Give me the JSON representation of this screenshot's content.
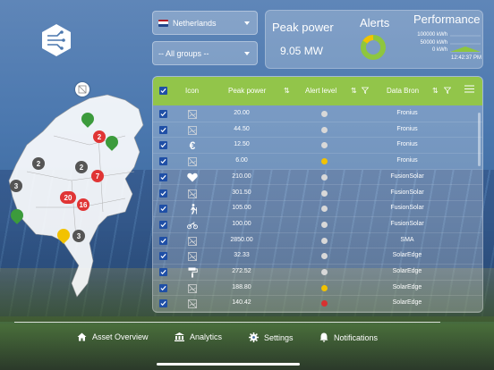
{
  "header": {
    "country_select": {
      "value": "Netherlands"
    },
    "group_select": {
      "value": "-- All groups --"
    }
  },
  "stats": {
    "peak_power_label": "Peak power",
    "peak_power_value": "9.05 MW",
    "alerts_label": "Alerts",
    "performance_label": "Performance",
    "performance_ticks": [
      "100000 kWh",
      "50000 kWh",
      "0 kWh"
    ],
    "performance_time": "12:42:37 PM"
  },
  "map": {
    "pins": [
      {
        "label": "2",
        "color": "#e03535"
      },
      {
        "label": "2",
        "color": "#555555"
      },
      {
        "label": "2",
        "color": "#555555"
      },
      {
        "label": "3",
        "color": "#555555"
      },
      {
        "label": "7",
        "color": "#e03535"
      },
      {
        "label": "20",
        "color": "#e03535"
      },
      {
        "label": "16",
        "color": "#e03535"
      },
      {
        "label": "3",
        "color": "#555555"
      }
    ]
  },
  "table": {
    "headers": {
      "icon": "Icon",
      "peak_power": "Peak power",
      "alert_level": "Alert level",
      "data_bron": "Data Bron"
    },
    "rows": [
      {
        "icon": "image-placeholder-icon",
        "power": "20.00",
        "alert": "#d8d8d8",
        "source": "Fronius"
      },
      {
        "icon": "image-placeholder-icon",
        "power": "44.50",
        "alert": "#d8d8d8",
        "source": "Fronius"
      },
      {
        "icon": "euro-icon",
        "power": "12.50",
        "alert": "#d8d8d8",
        "source": "Fronius"
      },
      {
        "icon": "image-placeholder-icon",
        "power": "6.00",
        "alert": "#f2c200",
        "source": "Fronius"
      },
      {
        "icon": "heart-icon",
        "power": "210.00",
        "alert": "#d8d8d8",
        "source": "FusionSolar"
      },
      {
        "icon": "image-placeholder-icon",
        "power": "301.50",
        "alert": "#d8d8d8",
        "source": "FusionSolar"
      },
      {
        "icon": "person-walking-icon",
        "power": "105.00",
        "alert": "#d8d8d8",
        "source": "FusionSolar"
      },
      {
        "icon": "motorcycle-icon",
        "power": "100.00",
        "alert": "#d8d8d8",
        "source": "FusionSolar"
      },
      {
        "icon": "image-placeholder-icon",
        "power": "2850.00",
        "alert": "#d8d8d8",
        "source": "SMA"
      },
      {
        "icon": "image-placeholder-icon",
        "power": "32.33",
        "alert": "#d8d8d8",
        "source": "SolarEdge"
      },
      {
        "icon": "paint-roller-icon",
        "power": "272.52",
        "alert": "#d8d8d8",
        "source": "SolarEdge"
      },
      {
        "icon": "image-placeholder-icon",
        "power": "188.80",
        "alert": "#f2c200",
        "source": "SolarEdge"
      },
      {
        "icon": "image-placeholder-icon",
        "power": "140.42",
        "alert": "#d83030",
        "source": "SolarEdge"
      }
    ]
  },
  "nav": {
    "items": [
      {
        "label": "Asset Overview",
        "icon": "home-icon"
      },
      {
        "label": "Analytics",
        "icon": "bank-icon"
      },
      {
        "label": "Settings",
        "icon": "gear-icon"
      },
      {
        "label": "Notifications",
        "icon": "bell-icon"
      }
    ]
  },
  "colors": {
    "header_green": "#92c54a",
    "checkbox_blue": "#1f4fa6",
    "donut_green": "#8ec63f",
    "donut_yellow": "#f2c200"
  }
}
